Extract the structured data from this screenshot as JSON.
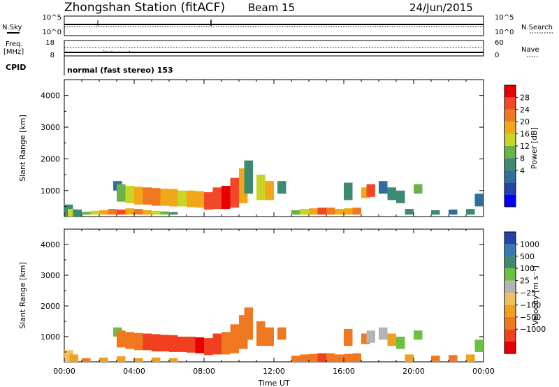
{
  "header": {
    "station": "Zhongshan Station (fitACF)",
    "beam": "Beam 15",
    "date": "24/Jun/2015"
  },
  "status_panels": {
    "nsky_label": "N.Sky",
    "nsky_ticks": [
      "10^5",
      "10^0"
    ],
    "nsearch_label": "N.Search",
    "nsearch_ticks": [
      "10^5",
      "10^0"
    ],
    "freq_label": "Freq.",
    "freq_unit": "[MHz]",
    "freq_ticks": [
      "18",
      "8"
    ],
    "nave_label": "Nave",
    "nave_ticks": [
      "60",
      "0"
    ],
    "cpid_label": "CPID",
    "cpid_text": "normal (fast stereo) 153"
  },
  "chart_data": [
    {
      "type": "heatmap",
      "name": "power-panel",
      "ylabel": "Slant Range [km]",
      "xlabel": "",
      "ylim": [
        180,
        4500
      ],
      "y_ticks": [
        "4000",
        "3000",
        "2000",
        "1000"
      ],
      "y_tick_values": [
        4000,
        3000,
        2000,
        1000
      ],
      "x_ticks": [],
      "colorbar": {
        "label": "Power [dB]",
        "levels": [
          "28",
          "24",
          "20",
          "16",
          "12",
          "8",
          "4"
        ],
        "colors": [
          "#0000ff",
          "#2244aa",
          "#2f6f9a",
          "#3c8a70",
          "#6cb24a",
          "#c7d526",
          "#f0a818",
          "#f07820",
          "#f04828",
          "#e80000"
        ]
      },
      "cells": [
        {
          "t": 0.0,
          "r0": 180,
          "r1": 560,
          "v": 12
        },
        {
          "t": 0.2,
          "r0": 180,
          "r1": 420,
          "v": 18
        },
        {
          "t": 0.5,
          "r0": 180,
          "r1": 400,
          "v": 10
        },
        {
          "t": 1.0,
          "r0": 240,
          "r1": 330,
          "v": 14
        },
        {
          "t": 1.5,
          "r0": 240,
          "r1": 360,
          "v": 18
        },
        {
          "t": 2.0,
          "r0": 240,
          "r1": 380,
          "v": 20
        },
        {
          "t": 2.5,
          "r0": 240,
          "r1": 420,
          "v": 24
        },
        {
          "t": 3.0,
          "r0": 240,
          "r1": 400,
          "v": 26
        },
        {
          "t": 3.5,
          "r0": 240,
          "r1": 440,
          "v": 22
        },
        {
          "t": 4.0,
          "r0": 240,
          "r1": 420,
          "v": 24
        },
        {
          "t": 4.5,
          "r0": 240,
          "r1": 380,
          "v": 20
        },
        {
          "t": 5.0,
          "r0": 240,
          "r1": 360,
          "v": 16
        },
        {
          "t": 5.5,
          "r0": 240,
          "r1": 340,
          "v": 14
        },
        {
          "t": 6.0,
          "r0": 240,
          "r1": 320,
          "v": 12
        },
        {
          "t": 2.8,
          "r0": 1000,
          "r1": 1300,
          "v": 8
        },
        {
          "t": 3.0,
          "r0": 650,
          "r1": 1200,
          "v": 14
        },
        {
          "t": 3.5,
          "r0": 600,
          "r1": 1150,
          "v": 18
        },
        {
          "t": 4.0,
          "r0": 560,
          "r1": 1120,
          "v": 22
        },
        {
          "t": 4.5,
          "r0": 560,
          "r1": 1100,
          "v": 24
        },
        {
          "t": 5.0,
          "r0": 520,
          "r1": 1080,
          "v": 24
        },
        {
          "t": 5.5,
          "r0": 520,
          "r1": 1060,
          "v": 22
        },
        {
          "t": 6.0,
          "r0": 500,
          "r1": 1050,
          "v": 20
        },
        {
          "t": 6.5,
          "r0": 500,
          "r1": 1000,
          "v": 18
        },
        {
          "t": 7.0,
          "r0": 480,
          "r1": 1000,
          "v": 20
        },
        {
          "t": 7.5,
          "r0": 460,
          "r1": 980,
          "v": 22
        },
        {
          "t": 8.0,
          "r0": 400,
          "r1": 950,
          "v": 26
        },
        {
          "t": 8.5,
          "r0": 420,
          "r1": 1100,
          "v": 28
        },
        {
          "t": 9.0,
          "r0": 420,
          "r1": 1150,
          "v": 30
        },
        {
          "t": 9.5,
          "r0": 460,
          "r1": 1400,
          "v": 28
        },
        {
          "t": 10.0,
          "r0": 600,
          "r1": 1700,
          "v": 20
        },
        {
          "t": 10.3,
          "r0": 900,
          "r1": 1950,
          "v": 10
        },
        {
          "t": 11.0,
          "r0": 700,
          "r1": 1500,
          "v": 16
        },
        {
          "t": 11.5,
          "r0": 700,
          "r1": 1300,
          "v": 20
        },
        {
          "t": 12.2,
          "r0": 900,
          "r1": 1300,
          "v": 12
        },
        {
          "t": 13.0,
          "r0": 240,
          "r1": 380,
          "v": 14
        },
        {
          "t": 13.5,
          "r0": 240,
          "r1": 420,
          "v": 18
        },
        {
          "t": 14.0,
          "r0": 240,
          "r1": 440,
          "v": 22
        },
        {
          "t": 14.5,
          "r0": 240,
          "r1": 460,
          "v": 26
        },
        {
          "t": 15.0,
          "r0": 240,
          "r1": 460,
          "v": 24
        },
        {
          "t": 15.5,
          "r0": 240,
          "r1": 420,
          "v": 20
        },
        {
          "t": 16.0,
          "r0": 240,
          "r1": 440,
          "v": 22
        },
        {
          "t": 16.5,
          "r0": 240,
          "r1": 460,
          "v": 24
        },
        {
          "t": 16.0,
          "r0": 700,
          "r1": 1250,
          "v": 10
        },
        {
          "t": 17.0,
          "r0": 760,
          "r1": 1100,
          "v": 22
        },
        {
          "t": 17.3,
          "r0": 800,
          "r1": 1200,
          "v": 26
        },
        {
          "t": 18.0,
          "r0": 900,
          "r1": 1300,
          "v": 8
        },
        {
          "t": 18.5,
          "r0": 700,
          "r1": 1100,
          "v": 12
        },
        {
          "t": 19.0,
          "r0": 600,
          "r1": 1000,
          "v": 10
        },
        {
          "t": 19.5,
          "r0": 240,
          "r1": 420,
          "v": 12
        },
        {
          "t": 20.0,
          "r0": 900,
          "r1": 1200,
          "v": 14
        },
        {
          "t": 21.0,
          "r0": 240,
          "r1": 380,
          "v": 10
        },
        {
          "t": 22.0,
          "r0": 240,
          "r1": 400,
          "v": 8
        },
        {
          "t": 23.0,
          "r0": 240,
          "r1": 420,
          "v": 10
        },
        {
          "t": 23.5,
          "r0": 500,
          "r1": 900,
          "v": 8
        }
      ]
    },
    {
      "type": "heatmap",
      "name": "velocity-panel",
      "ylabel": "Slant Range [km]",
      "xlabel": "Time UT",
      "ylim": [
        180,
        4500
      ],
      "y_ticks": [
        "4000",
        "3000",
        "2000",
        "1000"
      ],
      "y_tick_values": [
        4000,
        3000,
        2000,
        1000
      ],
      "x_ticks": [
        "00:00",
        "04:00",
        "08:00",
        "12:00",
        "16:00",
        "20:00",
        "00:00"
      ],
      "colorbar": {
        "label": "Velocity [m s⁻¹]",
        "levels": [
          "1000",
          "500",
          "100",
          "25",
          "−25",
          "−100",
          "−500",
          "−1000"
        ],
        "colors": [
          "#2244aa",
          "#3a78b0",
          "#3c8a70",
          "#6cc040",
          "#b4b4b4",
          "#f0c060",
          "#f0a020",
          "#f07820",
          "#f04020",
          "#e80000"
        ]
      },
      "cells": [
        {
          "t": 0.0,
          "r0": 180,
          "r1": 560,
          "v": -20
        },
        {
          "t": 0.3,
          "r0": 180,
          "r1": 420,
          "v": -60
        },
        {
          "t": 1.0,
          "r0": 180,
          "r1": 300,
          "v": -120
        },
        {
          "t": 2.0,
          "r0": 180,
          "r1": 320,
          "v": -80
        },
        {
          "t": 3.0,
          "r0": 180,
          "r1": 360,
          "v": -60
        },
        {
          "t": 4.0,
          "r0": 180,
          "r1": 300,
          "v": -30
        },
        {
          "t": 5.0,
          "r0": 180,
          "r1": 320,
          "v": -40
        },
        {
          "t": 6.0,
          "r0": 180,
          "r1": 300,
          "v": -60
        },
        {
          "t": 2.8,
          "r0": 1000,
          "r1": 1300,
          "v": 150
        },
        {
          "t": 3.0,
          "r0": 650,
          "r1": 1200,
          "v": -300
        },
        {
          "t": 3.5,
          "r0": 600,
          "r1": 1150,
          "v": -400
        },
        {
          "t": 4.0,
          "r0": 560,
          "r1": 1120,
          "v": -450
        },
        {
          "t": 4.5,
          "r0": 560,
          "r1": 1100,
          "v": -500
        },
        {
          "t": 5.0,
          "r0": 520,
          "r1": 1080,
          "v": -550
        },
        {
          "t": 5.5,
          "r0": 520,
          "r1": 1060,
          "v": -600
        },
        {
          "t": 6.0,
          "r0": 500,
          "r1": 1050,
          "v": -700
        },
        {
          "t": 6.5,
          "r0": 500,
          "r1": 1000,
          "v": -800
        },
        {
          "t": 7.0,
          "r0": 480,
          "r1": 1000,
          "v": -900
        },
        {
          "t": 7.5,
          "r0": 460,
          "r1": 980,
          "v": -1100
        },
        {
          "t": 8.0,
          "r0": 400,
          "r1": 950,
          "v": -900
        },
        {
          "t": 8.5,
          "r0": 420,
          "r1": 1100,
          "v": -600
        },
        {
          "t": 9.0,
          "r0": 420,
          "r1": 1150,
          "v": -450
        },
        {
          "t": 9.5,
          "r0": 460,
          "r1": 1400,
          "v": -400
        },
        {
          "t": 10.0,
          "r0": 600,
          "r1": 1700,
          "v": -300
        },
        {
          "t": 10.3,
          "r0": 900,
          "r1": 1950,
          "v": -250
        },
        {
          "t": 11.0,
          "r0": 700,
          "r1": 1500,
          "v": -350
        },
        {
          "t": 11.5,
          "r0": 700,
          "r1": 1300,
          "v": -300
        },
        {
          "t": 12.2,
          "r0": 900,
          "r1": 1300,
          "v": -200
        },
        {
          "t": 13.0,
          "r0": 180,
          "r1": 380,
          "v": -300
        },
        {
          "t": 13.5,
          "r0": 180,
          "r1": 420,
          "v": -400
        },
        {
          "t": 14.0,
          "r0": 180,
          "r1": 440,
          "v": -450
        },
        {
          "t": 14.5,
          "r0": 180,
          "r1": 460,
          "v": -500
        },
        {
          "t": 15.0,
          "r0": 180,
          "r1": 460,
          "v": -450
        },
        {
          "t": 15.5,
          "r0": 180,
          "r1": 420,
          "v": -400
        },
        {
          "t": 16.0,
          "r0": 180,
          "r1": 440,
          "v": -350
        },
        {
          "t": 16.5,
          "r0": 180,
          "r1": 460,
          "v": -300
        },
        {
          "t": 16.0,
          "r0": 700,
          "r1": 1250,
          "v": -250
        },
        {
          "t": 17.0,
          "r0": 760,
          "r1": 1100,
          "v": -150
        },
        {
          "t": 17.3,
          "r0": 800,
          "r1": 1200,
          "v": 60
        },
        {
          "t": 18.0,
          "r0": 900,
          "r1": 1300,
          "v": 40
        },
        {
          "t": 18.5,
          "r0": 700,
          "r1": 1100,
          "v": -60
        },
        {
          "t": 19.0,
          "r0": 600,
          "r1": 1000,
          "v": 200
        },
        {
          "t": 19.5,
          "r0": 180,
          "r1": 420,
          "v": -80
        },
        {
          "t": 20.0,
          "r0": 900,
          "r1": 1200,
          "v": 150
        },
        {
          "t": 21.0,
          "r0": 180,
          "r1": 380,
          "v": -200
        },
        {
          "t": 22.0,
          "r0": 180,
          "r1": 400,
          "v": -100
        },
        {
          "t": 23.0,
          "r0": 180,
          "r1": 420,
          "v": -60
        },
        {
          "t": 23.5,
          "r0": 500,
          "r1": 900,
          "v": 300
        }
      ]
    }
  ]
}
